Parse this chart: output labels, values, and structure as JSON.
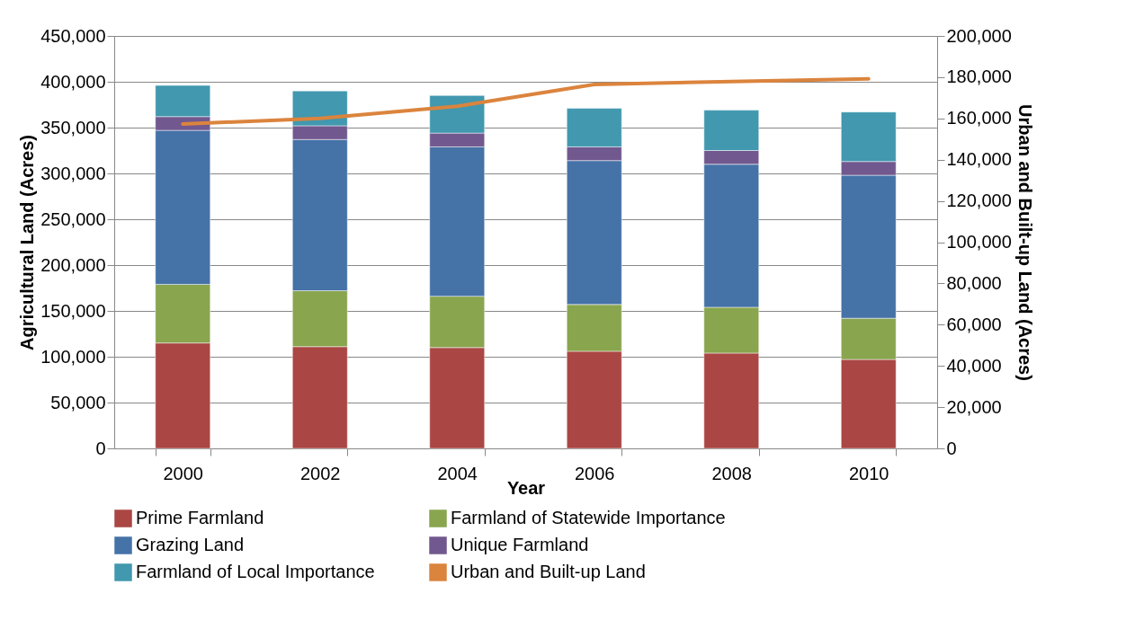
{
  "chart_data": {
    "type": "bar",
    "stacked": true,
    "xlabel": "Year",
    "ylabel": "Agricultural Land (Acres)",
    "y2label": "Urban and Built-up Land (Acres)",
    "categories": [
      "2000",
      "2002",
      "2004",
      "2006",
      "2008",
      "2010"
    ],
    "series": [
      {
        "name": "Prime Farmland",
        "color": "#aa4643",
        "values": [
          115000,
          111000,
          110000,
          106000,
          104000,
          97000
        ]
      },
      {
        "name": "Farmland of Statewide Importance",
        "color": "#89a54e",
        "values": [
          64000,
          61000,
          56000,
          51000,
          50000,
          45000
        ]
      },
      {
        "name": "Grazing Land",
        "color": "#4572a7",
        "values": [
          168000,
          165000,
          163000,
          157000,
          156000,
          156000
        ]
      },
      {
        "name": "Unique Farmland",
        "color": "#71588f",
        "values": [
          15000,
          15000,
          15000,
          15000,
          15000,
          15000
        ]
      },
      {
        "name": "Farmland of Local Importance",
        "color": "#4198af",
        "values": [
          34000,
          38000,
          41000,
          42000,
          44000,
          54000
        ]
      },
      {
        "name": "Urban and Built-up Land",
        "color": "#db843d",
        "type": "line",
        "axis": "y2",
        "values": [
          157300,
          160000,
          165900,
          176500,
          177900,
          179200
        ]
      }
    ],
    "ylim": [
      0,
      450000
    ],
    "yticks": [
      0,
      {
        "value": 50000,
        "label": "50,000"
      },
      {
        "value": 100000,
        "label": "100,000"
      },
      {
        "value": 150000,
        "label": "150,000"
      },
      {
        "value": 200000,
        "label": "200,000"
      },
      {
        "value": 250000,
        "label": "250,000"
      },
      {
        "value": 300000,
        "label": "300,000"
      },
      {
        "value": 350000,
        "label": "350,000"
      },
      {
        "value": 400000,
        "label": "400,000"
      },
      {
        "value": 450000,
        "label": "450,000"
      }
    ],
    "y2lim": [
      0,
      200000
    ],
    "y2ticks": [
      0,
      {
        "value": 20000,
        "label": "20,000"
      },
      {
        "value": 40000,
        "label": "40,000"
      },
      {
        "value": 60000,
        "label": "60,000"
      },
      {
        "value": 80000,
        "label": "80,000"
      },
      {
        "value": 100000,
        "label": "100,000"
      },
      {
        "value": 120000,
        "label": "120,000"
      },
      {
        "value": 140000,
        "label": "140,000"
      },
      {
        "value": 160000,
        "label": "160,000"
      },
      {
        "value": 180000,
        "label": "180,000"
      },
      {
        "value": 200000,
        "label": "200,000"
      }
    ],
    "grid": "y",
    "legend": "bottom"
  }
}
